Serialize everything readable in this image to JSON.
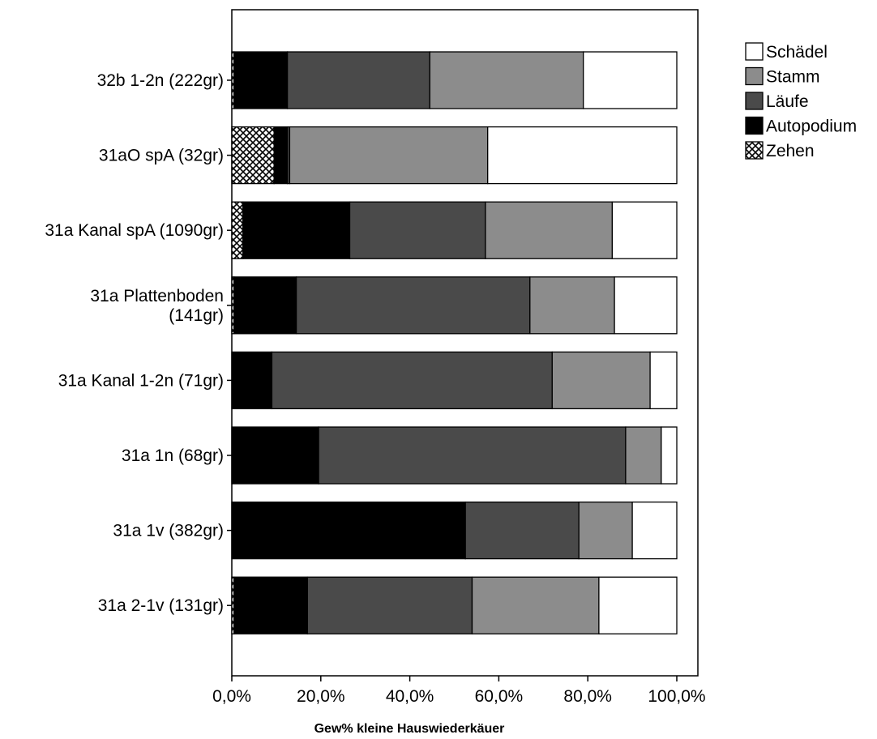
{
  "chart_data": {
    "type": "bar",
    "orientation": "horizontal",
    "stacked": true,
    "xlabel": "Gew% kleine Hauswiederkäuer",
    "ylabel": "",
    "xlim": [
      0,
      100
    ],
    "x_ticks": [
      "0,0%",
      "20,0%",
      "40,0%",
      "60,0%",
      "80,0%",
      "100,0%"
    ],
    "x_tick_values": [
      0,
      20,
      40,
      60,
      80,
      100
    ],
    "categories": [
      [
        "32b 1-2n (222gr)"
      ],
      [
        "31aO spA (32gr)"
      ],
      [
        "31a Kanal spA (1090gr)"
      ],
      [
        "31a Plattenboden",
        "(141gr)"
      ],
      [
        "31a Kanal 1-2n (71gr)"
      ],
      [
        "31a 1n (68gr)"
      ],
      [
        "31a 1v (382gr)"
      ],
      [
        "31a 2-1v (131gr)"
      ]
    ],
    "series": [
      {
        "name": "Zehen",
        "color": "#ffffff",
        "pattern": "crosshatch",
        "values": [
          0.5,
          9.5,
          2.5,
          0.5,
          0,
          0,
          0,
          0.5
        ]
      },
      {
        "name": "Autopodium",
        "color": "#000000",
        "values": [
          12.0,
          3.0,
          24.0,
          14.0,
          9.0,
          19.5,
          52.5,
          16.5
        ]
      },
      {
        "name": "Läufe",
        "color": "#4a4a4a",
        "values": [
          32.0,
          0.5,
          30.5,
          52.5,
          63.0,
          69.0,
          25.5,
          37.0
        ]
      },
      {
        "name": "Stamm",
        "color": "#8c8c8c",
        "values": [
          34.5,
          44.5,
          28.5,
          19.0,
          22.0,
          8.0,
          12.0,
          28.5
        ]
      },
      {
        "name": "Schädel",
        "color": "#ffffff",
        "values": [
          21.0,
          42.5,
          14.5,
          14.0,
          6.0,
          3.5,
          10.0,
          17.5
        ]
      }
    ],
    "legend": {
      "position": "top-right",
      "order": [
        "Schädel",
        "Stamm",
        "Läufe",
        "Autopodium",
        "Zehen"
      ]
    },
    "grid": false
  }
}
